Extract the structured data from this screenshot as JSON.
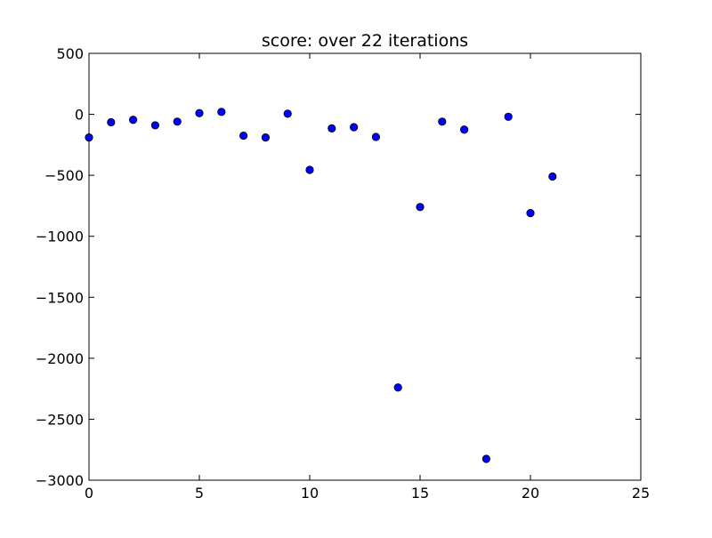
{
  "chart_data": {
    "type": "scatter",
    "title": "score: over 22 iterations",
    "xlabel": "",
    "ylabel": "",
    "xlim": [
      0,
      25
    ],
    "ylim": [
      -3000,
      500
    ],
    "xticks": [
      0,
      5,
      10,
      15,
      20,
      25
    ],
    "yticks": [
      500,
      0,
      -500,
      -1000,
      -1500,
      -2000,
      -2500,
      -3000
    ],
    "xtick_labels": [
      "0",
      "5",
      "10",
      "15",
      "20",
      "25"
    ],
    "ytick_labels": [
      "500",
      "0",
      "−500",
      "−1000",
      "−1500",
      "−2000",
      "−2500",
      "−3000"
    ],
    "grid": false,
    "legend": "none",
    "marker_color": "#0000ff",
    "marker_edge_color": "#000000",
    "series": [
      {
        "x": [
          0,
          1,
          2,
          3,
          4,
          5,
          6,
          7,
          8,
          9,
          10,
          11,
          12,
          13,
          14,
          15,
          16,
          17,
          18,
          19,
          20,
          21
        ],
        "y": [
          -190,
          -65,
          -45,
          -90,
          -60,
          10,
          20,
          -175,
          -190,
          5,
          -455,
          -115,
          -105,
          -185,
          -2240,
          -760,
          -60,
          -125,
          -2825,
          -20,
          -810,
          -510
        ]
      }
    ]
  }
}
